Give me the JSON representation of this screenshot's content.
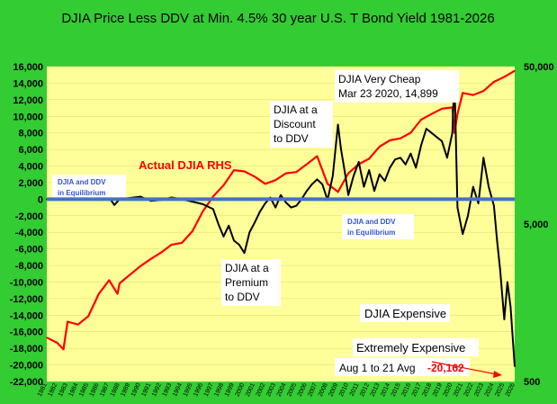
{
  "background_color": "#33cc33",
  "plot_color": "#ffff99",
  "chart_data": {
    "type": "line",
    "title": "DJIA Price Less DDV at Min. 4.5% 30 year U.S. T Bond Yield 1981-2026",
    "ylim_left": [
      -22000,
      16000
    ],
    "yticks_left": [
      "16,000",
      "14,000",
      "12,000",
      "10,000",
      "8,000",
      "6,000",
      "4,000",
      "2,000",
      "0",
      "-2,000",
      "-4,000",
      "-6,000",
      "-8,000",
      "-10,000",
      "-12,000",
      "-14,000",
      "-16,000",
      "-18,000",
      "-20,000",
      "-22,000"
    ],
    "yscale_right": "log",
    "ylim_right": [
      500,
      50000
    ],
    "yticks_right": [
      "50,000",
      "5,000",
      "500"
    ],
    "xlim": [
      1981,
      2026
    ],
    "x_tick_labels": [
      "1981",
      "1982",
      "1983",
      "1984",
      "1985",
      "1986",
      "1987",
      "1988",
      "1989",
      "1990",
      "1991",
      "1992",
      "1993",
      "1994",
      "1995",
      "1996",
      "1997",
      "1998",
      "1999",
      "2000",
      "2001",
      "2002",
      "2003",
      "2004",
      "2005",
      "2006",
      "2007",
      "2008",
      "2009",
      "2010",
      "2011",
      "2012",
      "2013",
      "2014",
      "2015",
      "2016",
      "2017",
      "2018",
      "2019",
      "2020",
      "2021",
      "2022",
      "2023",
      "2024",
      "2025",
      "2026"
    ],
    "series": [
      {
        "name": "DJIA Price Less DDV",
        "color": "#000000",
        "axis": "left",
        "x": [
          1981,
          1983,
          1985,
          1986,
          1987,
          1987.5,
          1988,
          1990,
          1991,
          1992,
          1993,
          1994,
          1995,
          1996,
          1997,
          1997.5,
          1998,
          1998.5,
          1999,
          1999.5,
          2000,
          2000.5,
          2001,
          2001.5,
          2002,
          2002.5,
          2003,
          2003.5,
          2004,
          2004.5,
          2005,
          2005.5,
          2006,
          2006.5,
          2007,
          2007.5,
          2008,
          2008.5,
          2009,
          2009.3,
          2009.7,
          2010,
          2010.5,
          2011,
          2011.5,
          2012,
          2012.5,
          2013,
          2013.5,
          2014,
          2014.5,
          2015,
          2015.5,
          2016,
          2016.5,
          2017,
          2017.5,
          2018,
          2018.5,
          2019,
          2019.5,
          2020,
          2020.2,
          2020.5,
          2021,
          2021.5,
          2022,
          2022.5,
          2023,
          2023.5,
          2024,
          2024.3,
          2024.6,
          2025,
          2025.3,
          2025.6,
          2026
        ],
        "y": [
          0,
          0,
          0,
          0,
          200,
          -700,
          0,
          300,
          -200,
          -100,
          200,
          0,
          -300,
          -600,
          -1200,
          -3000,
          -4500,
          -3200,
          -5000,
          -5500,
          -6500,
          -4000,
          -2800,
          -1500,
          -500,
          200,
          -1000,
          500,
          -400,
          -1000,
          -800,
          0,
          1000,
          1800,
          2400,
          1800,
          -100,
          2800,
          9000,
          6000,
          3000,
          500,
          2800,
          4500,
          1500,
          3500,
          1000,
          3000,
          2200,
          3800,
          4800,
          5000,
          4200,
          5500,
          3800,
          6500,
          8500,
          8000,
          7500,
          7000,
          5000,
          8000,
          14899,
          -1000,
          -4200,
          -2000,
          1500,
          -500,
          5000,
          1500,
          -800,
          -5000,
          -8500,
          -14500,
          -10000,
          -13000,
          -20162
        ]
      },
      {
        "name": "Actual DJIA RHS",
        "color": "#ff0000",
        "axis": "right",
        "x": [
          1981,
          1982,
          1982.6,
          1983,
          1984,
          1985,
          1986,
          1987,
          1987.8,
          1988,
          1990,
          1991,
          1992,
          1993,
          1994,
          1995,
          1996,
          1997,
          1998,
          1999,
          2000,
          2001,
          2002,
          2003,
          2004,
          2005,
          2006,
          2007,
          2008,
          2009,
          2010,
          2011,
          2012,
          2013,
          2014,
          2015,
          2016,
          2017,
          2018,
          2019,
          2020,
          2020.2,
          2020.5,
          2021,
          2022,
          2023,
          2024,
          2025,
          2026
        ],
        "y": [
          950,
          880,
          800,
          1200,
          1150,
          1300,
          1800,
          2200,
          1800,
          2100,
          2700,
          3000,
          3300,
          3700,
          3800,
          4500,
          6000,
          7500,
          8800,
          11000,
          10800,
          10000,
          9000,
          9500,
          10500,
          10700,
          12000,
          13500,
          9000,
          8000,
          10500,
          12000,
          13000,
          15500,
          17000,
          17500,
          19000,
          23000,
          25000,
          27000,
          27500,
          19000,
          25000,
          34000,
          33000,
          35000,
          40000,
          43000,
          47000
        ]
      }
    ],
    "annotations": [
      "DJIA Very Cheap",
      "Mar 23 2020, 14,899",
      "DJIA at a",
      "Discount",
      "to DDV",
      "Actual DJIA RHS",
      "DJIA and DDV",
      "in Equilibrium",
      "DJIA and DDV",
      "in Equilibrium",
      "DJIA at a",
      "Premium",
      "to DDV",
      "DJIA Expensive",
      "Extremely Expensive",
      "Aug 1 to 21 Avg",
      "-20,162"
    ]
  }
}
